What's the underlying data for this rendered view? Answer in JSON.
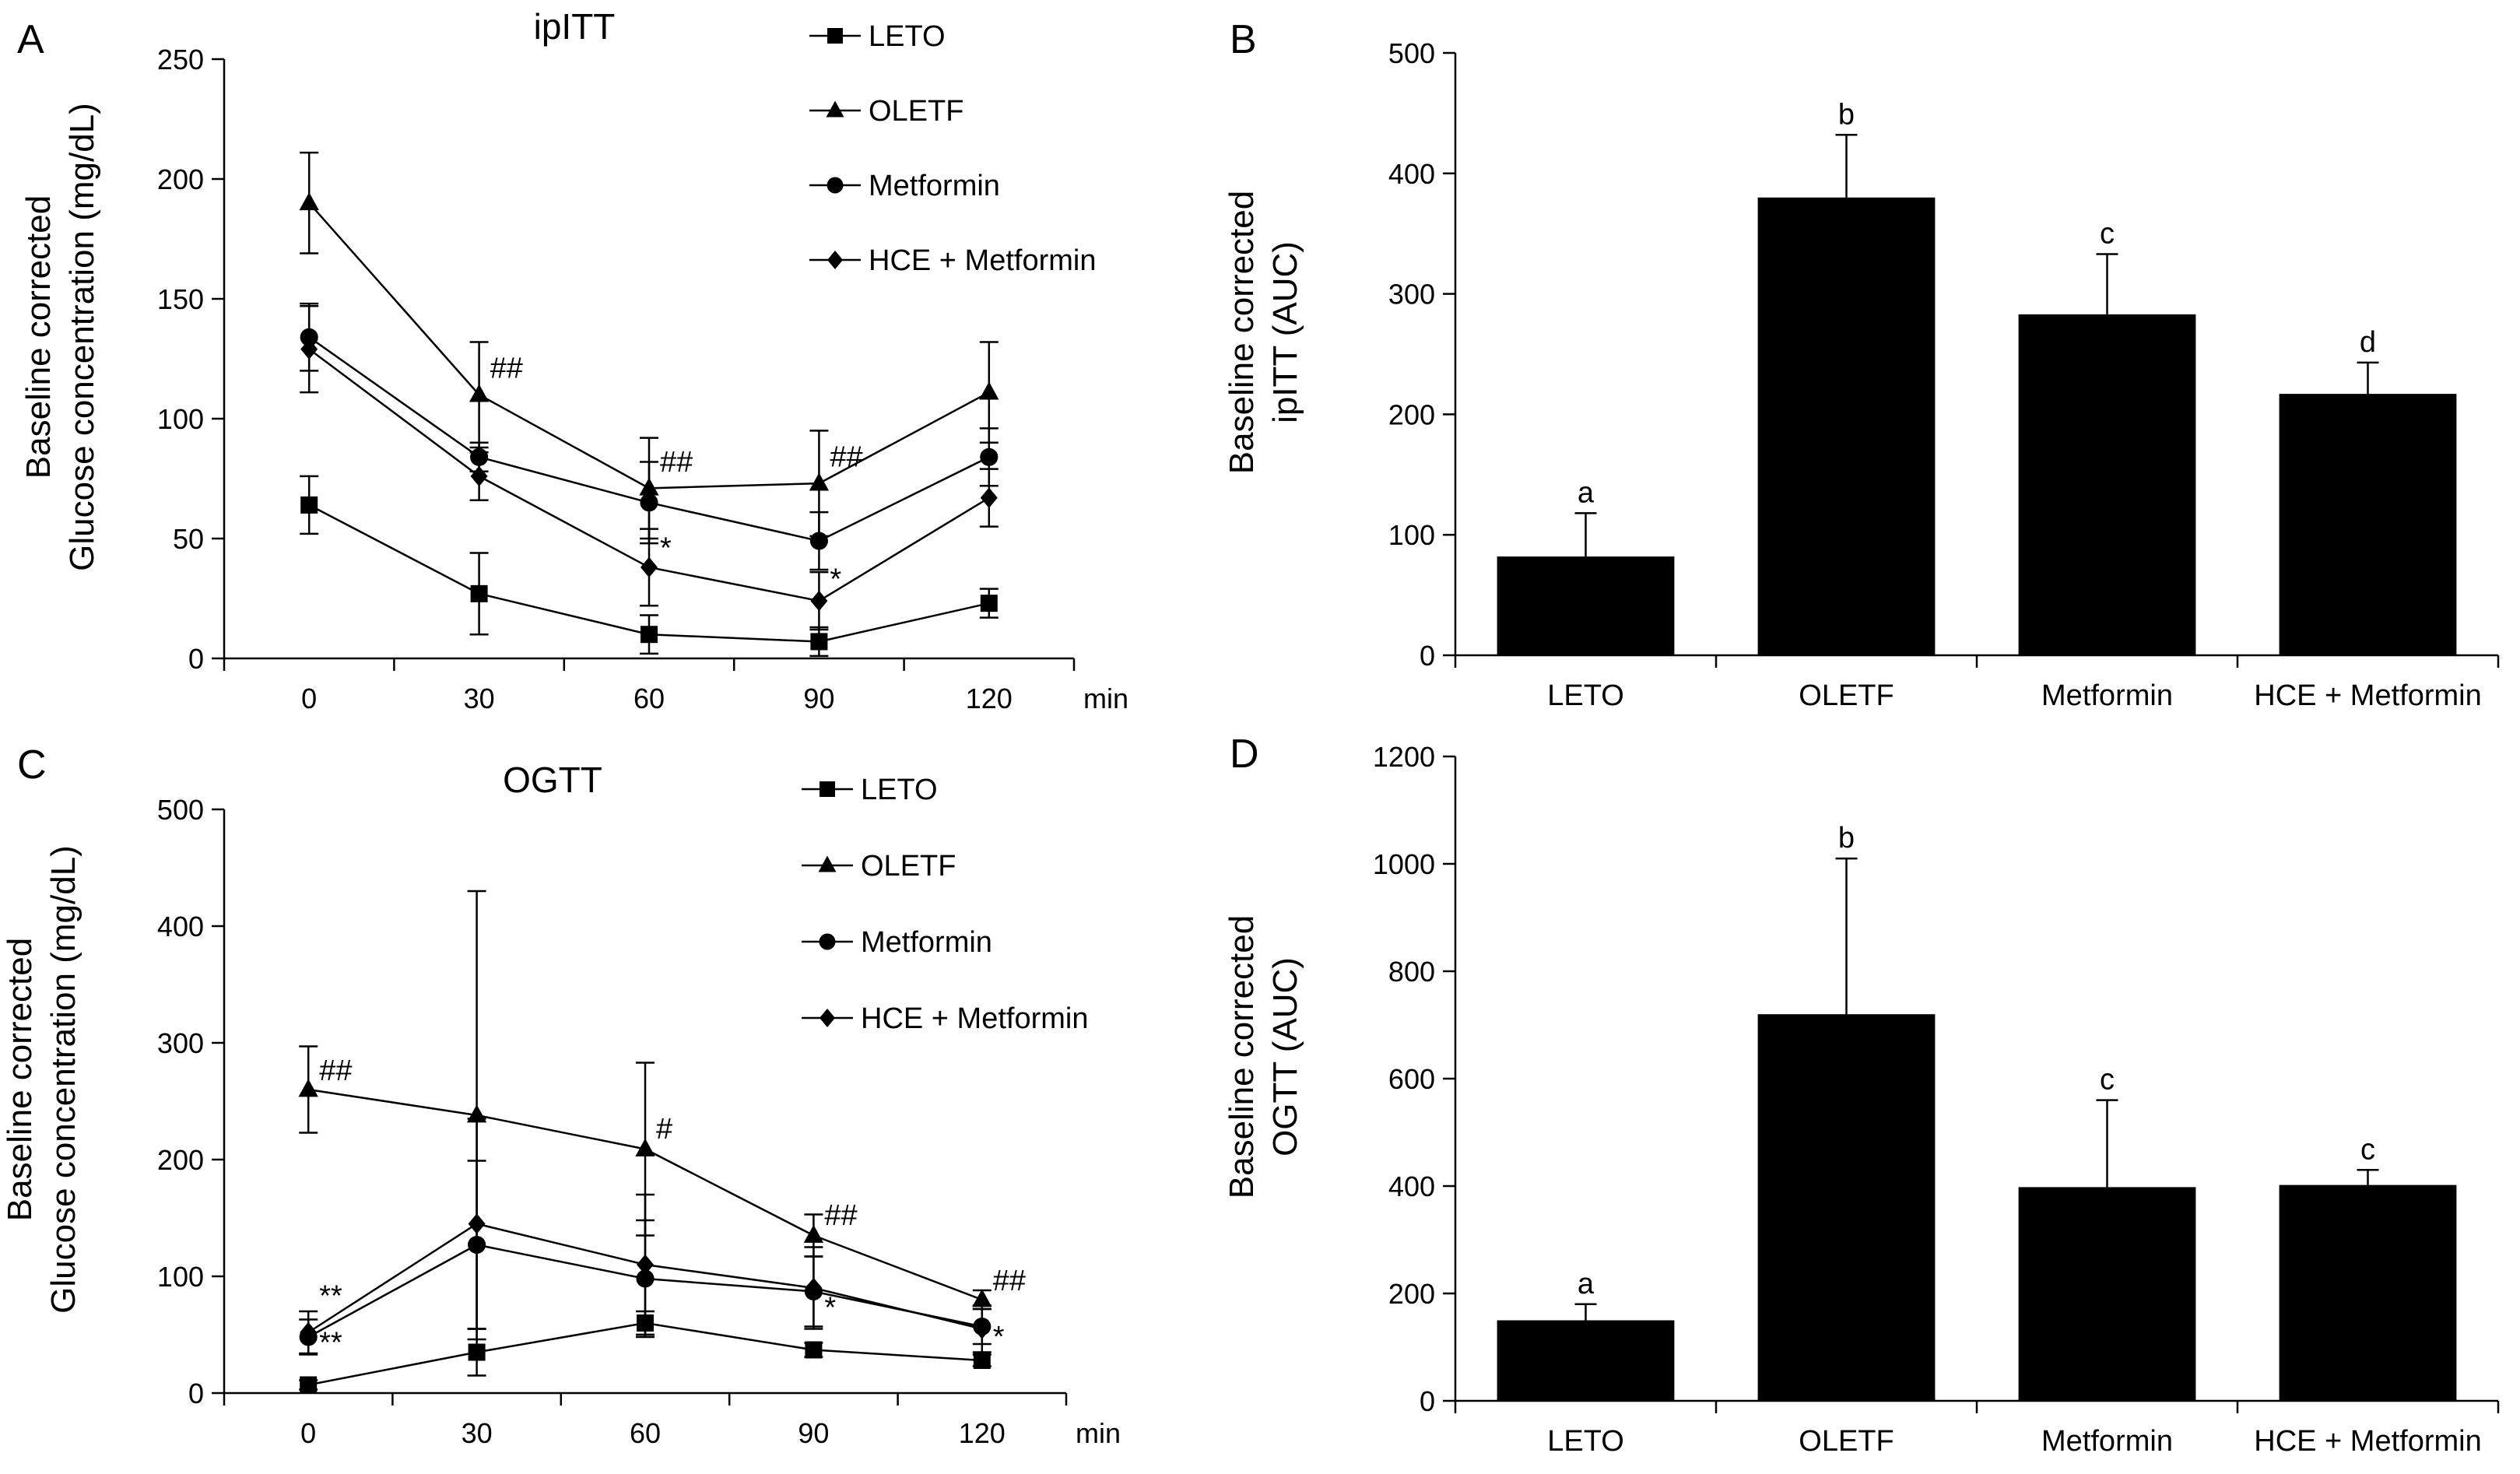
{
  "chart_data": [
    {
      "panel": "A",
      "type": "line",
      "title": "ipITT",
      "ylabel": [
        "Baseline corrected",
        "Glucose concentration (mg/dL)"
      ],
      "xunit": "min",
      "x": [
        0,
        30,
        60,
        90,
        120
      ],
      "xticks": [
        "0",
        "30",
        "60",
        "90",
        "120"
      ],
      "ylim": [
        0,
        250
      ],
      "yticks": [
        0,
        50,
        100,
        150,
        200,
        250
      ],
      "legend_position": "top-right",
      "series": [
        {
          "name": "LETO",
          "marker": "square",
          "values": [
            64,
            27,
            10,
            7,
            23
          ],
          "errors": [
            12,
            17,
            8,
            6,
            6
          ]
        },
        {
          "name": "OLETF",
          "marker": "triangle",
          "values": [
            190,
            110,
            71,
            73,
            111
          ],
          "errors": [
            21,
            22,
            21,
            22,
            21
          ]
        },
        {
          "name": "Metformin",
          "marker": "circle",
          "values": [
            134,
            84,
            65,
            49,
            84
          ],
          "errors": [
            14,
            6,
            17,
            12,
            12
          ]
        },
        {
          "name": "HCE + Metformin",
          "marker": "diamond",
          "values": [
            129,
            76,
            38,
            24,
            67
          ],
          "errors": [
            18,
            10,
            16,
            12,
            12
          ]
        }
      ],
      "annotations": [
        {
          "text": "##",
          "x": 30,
          "y": 117
        },
        {
          "text": "##",
          "x": 60,
          "y": 78
        },
        {
          "text": "##",
          "x": 90,
          "y": 80
        },
        {
          "text": "*",
          "x": 60,
          "y": 42
        },
        {
          "text": "*",
          "x": 90,
          "y": 29
        }
      ]
    },
    {
      "panel": "B",
      "type": "bar",
      "ylabel": [
        "Baseline corrected",
        "ipITT (AUC)"
      ],
      "categories": [
        "LETO",
        "OLETF",
        "Metformin",
        "HCE + Metformin"
      ],
      "values": [
        82,
        380,
        283,
        217
      ],
      "errors": [
        36,
        52,
        50,
        26
      ],
      "letters": [
        "a",
        "b",
        "c",
        "d"
      ],
      "ylim": [
        0,
        500
      ],
      "yticks": [
        0,
        100,
        200,
        300,
        400,
        500
      ]
    },
    {
      "panel": "C",
      "type": "line",
      "title": "OGTT",
      "ylabel": [
        "Baseline corrected",
        "Glucose concentration (mg/dL)"
      ],
      "xunit": "min",
      "x": [
        0,
        30,
        60,
        90,
        120
      ],
      "xticks": [
        "0",
        "30",
        "60",
        "90",
        "120"
      ],
      "ylim": [
        0,
        500
      ],
      "yticks": [
        0,
        100,
        200,
        300,
        400,
        500
      ],
      "legend_position": "top-right",
      "series": [
        {
          "name": "LETO",
          "marker": "square",
          "values": [
            7,
            35,
            60,
            37,
            28
          ],
          "errors": [
            4,
            20,
            10,
            6,
            5
          ]
        },
        {
          "name": "OLETF",
          "marker": "triangle",
          "values": [
            260,
            238,
            209,
            135,
            80
          ],
          "errors": [
            37,
            192,
            74,
            18,
            8
          ]
        },
        {
          "name": "Metformin",
          "marker": "circle",
          "values": [
            48,
            127,
            98,
            87,
            57
          ],
          "errors": [
            15,
            72,
            50,
            30,
            15
          ]
        },
        {
          "name": "HCE + Metformin",
          "marker": "diamond",
          "values": [
            52,
            145,
            110,
            90,
            55
          ],
          "errors": [
            18,
            90,
            60,
            35,
            20
          ]
        }
      ],
      "annotations": [
        {
          "text": "##",
          "x": 0,
          "y": 268
        },
        {
          "text": "#",
          "x": 60,
          "y": 218
        },
        {
          "text": "##",
          "x": 90,
          "y": 144
        },
        {
          "text": "##",
          "x": 120,
          "y": 88
        },
        {
          "text": "**",
          "x": 0,
          "y": 75
        },
        {
          "text": "**",
          "x": 0,
          "y": 35
        },
        {
          "text": "*",
          "x": 90,
          "y": 65
        },
        {
          "text": "*",
          "x": 120,
          "y": 40
        }
      ]
    },
    {
      "panel": "D",
      "type": "bar",
      "ylabel": [
        "Baseline corrected",
        "OGTT (AUC)"
      ],
      "categories": [
        "LETO",
        "OLETF",
        "Metformin",
        "HCE + Metformin"
      ],
      "values": [
        150,
        720,
        398,
        402
      ],
      "errors": [
        30,
        290,
        162,
        28
      ],
      "letters": [
        "a",
        "b",
        "c",
        "c"
      ],
      "ylim": [
        0,
        1200
      ],
      "yticks": [
        0,
        200,
        400,
        600,
        800,
        1000,
        1200
      ]
    }
  ]
}
